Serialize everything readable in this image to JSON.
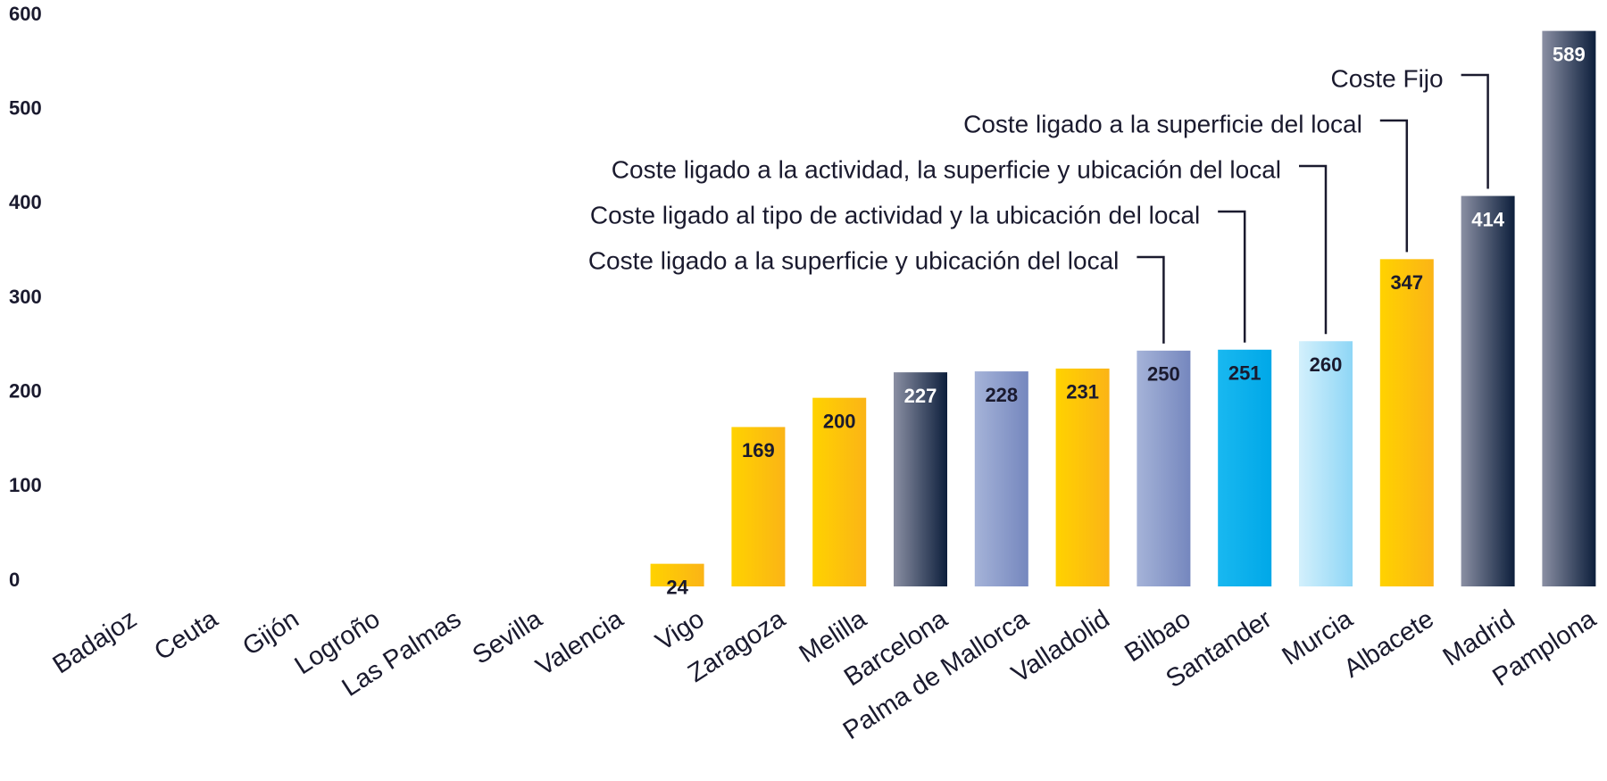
{
  "chart_data": {
    "type": "bar",
    "categories": [
      "Badajoz",
      "Ceuta",
      "Gijón",
      "Logroño",
      "Las Palmas",
      "Sevilla",
      "Valencia",
      "Vigo",
      "Zaragoza",
      "Melilla",
      "Barcelona",
      "Palma de Mallorca",
      "Valladolid",
      "Bilbao",
      "Santander",
      "Murcia",
      "Albacete",
      "Madrid",
      "Pamplona"
    ],
    "values": [
      null,
      null,
      null,
      null,
      null,
      null,
      null,
      24,
      169,
      200,
      227,
      228,
      231,
      250,
      251,
      260,
      347,
      414,
      589
    ],
    "colors": [
      null,
      null,
      null,
      null,
      null,
      null,
      null,
      [
        "#ffd200",
        "#fbb416"
      ],
      [
        "#ffd200",
        "#fbb416"
      ],
      [
        "#ffd200",
        "#fbb416"
      ],
      [
        "#8a8fa3",
        "#0d1f3c"
      ],
      [
        "#a5b3d8",
        "#7587be"
      ],
      [
        "#ffd200",
        "#fbb416"
      ],
      [
        "#a5b3d8",
        "#7587be"
      ],
      [
        "#19b8f0",
        "#00a8e8"
      ],
      [
        "#d3f0fc",
        "#8ed6f6"
      ],
      [
        "#ffd200",
        "#fbb416"
      ],
      [
        "#8a8fa3",
        "#0d1f3c"
      ],
      [
        "#8a8fa3",
        "#0d1f3c"
      ]
    ],
    "value_label_colors": [
      null,
      null,
      null,
      null,
      null,
      null,
      null,
      "#1a1a2e",
      "#1a1a2e",
      "#1a1a2e",
      "#ffffff",
      "#1a1a2e",
      "#1a1a2e",
      "#1a1a2e",
      "#1a1a2e",
      "#1a1a2e",
      "#1a1a2e",
      "#ffffff",
      "#ffffff"
    ],
    "ylim": [
      0,
      600
    ],
    "yticks": [
      0,
      100,
      200,
      300,
      400,
      500,
      600
    ],
    "grid": false,
    "annotations": [
      {
        "text": "Coste ligado a la superficie y ubicación del local",
        "category": "Bilbao"
      },
      {
        "text": "Coste ligado al tipo de actividad y la ubicación del local",
        "category": "Santander"
      },
      {
        "text": "Coste ligado a la actividad, la superficie y ubicación del local",
        "category": "Murcia"
      },
      {
        "text": "Coste ligado a la superficie del local",
        "category": "Albacete"
      },
      {
        "text": "Coste Fijo",
        "category": "Madrid"
      }
    ]
  }
}
